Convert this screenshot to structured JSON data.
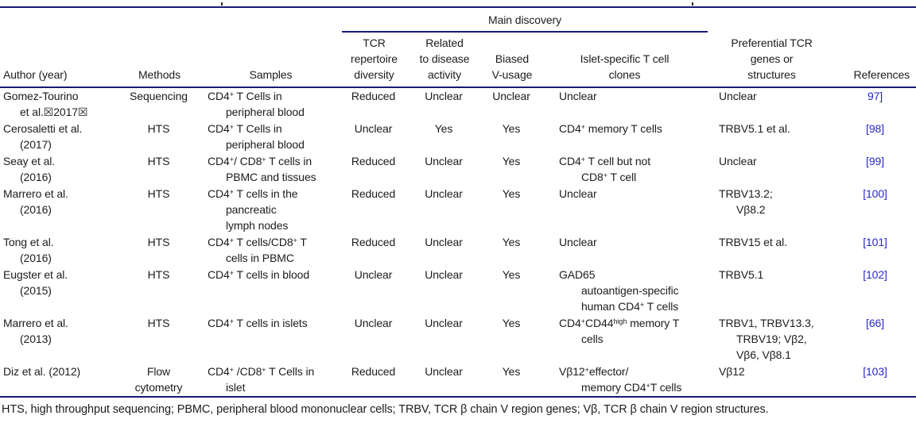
{
  "colors": {
    "rule": "#191975",
    "text": "#1c1c1c",
    "reference_link": "#2727cc"
  },
  "table": {
    "header": {
      "main_discovery_label": "Main discovery",
      "columns": [
        {
          "id": "author",
          "label": "Author (year)"
        },
        {
          "id": "methods",
          "label": "Methods"
        },
        {
          "id": "samples",
          "label": "Samples"
        },
        {
          "id": "diversity",
          "label": "TCR\nrepertoire\ndiversity"
        },
        {
          "id": "activity",
          "label": "Related\nto disease\nactivity"
        },
        {
          "id": "biased",
          "label": "Biased\nV-usage"
        },
        {
          "id": "clones",
          "label": "Islet-specific T cell\nclones"
        },
        {
          "id": "preferential",
          "label": "Preferential TCR\ngenes or\nstructures"
        },
        {
          "id": "reference",
          "label": "References"
        }
      ]
    },
    "rows": [
      {
        "author": "Gomez-Tourino\net al.☒2017☒",
        "methods": "Sequencing",
        "samples": "CD4^{+} T Cells in\nperipheral blood",
        "diversity": "Reduced",
        "activity": "Unclear",
        "biased": "Unclear",
        "clones": "Unclear",
        "preferential": "Unclear",
        "reference": "97]"
      },
      {
        "author": "Cerosaletti et al.\n(2017)",
        "methods": "HTS",
        "samples": "CD4^{+} T Cells in\nperipheral blood",
        "diversity": "Unclear",
        "activity": "Yes",
        "biased": "Yes",
        "clones": "CD4^{+} memory T cells",
        "preferential": "TRBV5.1 et al.",
        "reference": "[98]"
      },
      {
        "author": "Seay et al.\n(2016)",
        "methods": "HTS",
        "samples": "CD4^{+}/ CD8^{+} T cells in\nPBMC and tissues",
        "diversity": "Reduced",
        "activity": "Unclear",
        "biased": "Yes",
        "clones": "CD4^{+} T cell but not\nCD8^{+} T cell",
        "preferential": "Unclear",
        "reference": "[99]"
      },
      {
        "author": "Marrero et al.\n(2016)",
        "methods": "HTS",
        "samples": "CD4^{+} T cells in the\npancreatic\nlymph nodes",
        "diversity": "Reduced",
        "activity": "Unclear",
        "biased": "Yes",
        "clones": "Unclear",
        "preferential": "TRBV13.2;\nVβ8.2",
        "reference": "[100]"
      },
      {
        "author": "Tong et al.\n(2016)",
        "methods": "HTS",
        "samples": "CD4^{+} T cells/CD8^{+} T\ncells in PBMC",
        "diversity": "Reduced",
        "activity": "Unclear",
        "biased": "Yes",
        "clones": "Unclear",
        "preferential": "TRBV15 et al.",
        "reference": "[101]"
      },
      {
        "author": "Eugster et al.\n(2015)",
        "methods": "HTS",
        "samples": "CD4^{+} T cells in blood",
        "diversity": "Unclear",
        "activity": "Unclear",
        "biased": "Yes",
        "clones": "GAD65\nautoantigen-specific\nhuman CD4^{+} T cells",
        "preferential": "TRBV5.1",
        "reference": "[102]"
      },
      {
        "author": "Marrero et al.\n(2013)",
        "methods": "HTS",
        "samples": "CD4^{+} T cells in islets",
        "diversity": "Unclear",
        "activity": "Unclear",
        "biased": "Yes",
        "clones": "CD4^{+}CD44^{high} memory T\ncells",
        "preferential": "TRBV1, TRBV13.3,\nTRBV19; Vβ2,\nVβ6, Vβ8.1",
        "reference": "[66]"
      },
      {
        "author": "Diz et al. (2012)",
        "methods": "Flow\ncytometry",
        "samples": "CD4^{+} /CD8^{+} T Cells in\nislet",
        "diversity": "Reduced",
        "activity": "Unclear",
        "biased": "Yes",
        "clones": "Vβ12^{+}effector/\nmemory CD4^{+}T cells",
        "preferential": "Vβ12",
        "reference": "[103]"
      }
    ],
    "footnote": "HTS, high throughput sequencing; PBMC, peripheral blood mononuclear cells; TRBV, TCR β chain V region genes; Vβ, TCR β chain V region structures."
  }
}
